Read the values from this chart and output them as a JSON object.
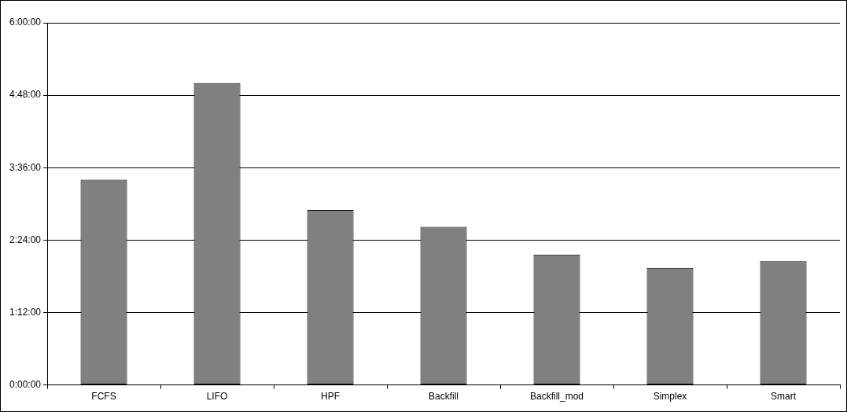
{
  "chart_data": {
    "type": "bar",
    "categories": [
      "FCFS",
      "LIFO",
      "HPF",
      "Backfill",
      "Backfill_mod",
      "Simplex",
      "Smart"
    ],
    "values": [
      3.4,
      5.0,
      2.9,
      2.62,
      2.16,
      1.94,
      2.05
    ],
    "color": "#808080",
    "ylim": [
      0,
      6
    ],
    "yticks": [
      {
        "value": 0,
        "label": "0:00:00"
      },
      {
        "value": 1.2,
        "label": "1:12:00"
      },
      {
        "value": 2.4,
        "label": "2:24:00"
      },
      {
        "value": 3.6,
        "label": "3:36:00"
      },
      {
        "value": 4.8,
        "label": "4:48:00"
      },
      {
        "value": 6,
        "label": "6:00:00"
      }
    ],
    "grid": "y",
    "legend": false
  }
}
